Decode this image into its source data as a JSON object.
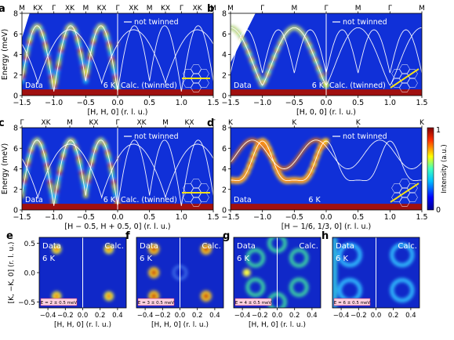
{
  "chart_data": [
    {
      "panel": "a",
      "type": "heatmap",
      "xlabel": "[H, H, 0] (r. l. u.)",
      "ylabel": "Energy (meV)",
      "xlim": [
        -1.5,
        1.5
      ],
      "ylim": [
        0,
        8
      ],
      "xticks": [
        "−1.5",
        "−1.0",
        "−0.5",
        "0.0",
        "0.5",
        "1.0",
        "1.5"
      ],
      "yticks": [
        "0",
        "2",
        "4",
        "6",
        "8"
      ],
      "top_labels": [
        "M",
        "KX",
        "Γ",
        "XK",
        "M",
        "KX",
        "Γ",
        "XK",
        "M",
        "KX",
        "Γ",
        "XK",
        "M"
      ],
      "legend": "not twinned",
      "left_text": "Data",
      "temp": "6 K",
      "right_text": "Calc. (twinned)",
      "pattern": "hh"
    },
    {
      "panel": "b",
      "type": "heatmap",
      "xlabel": "[H, 0, 0] (r. l. u.)",
      "ylabel": "",
      "xlim": [
        -1.5,
        1.5
      ],
      "ylim": [
        0,
        8
      ],
      "xticks": [
        "−1.5",
        "−1.0",
        "−0.5",
        "0.0",
        "0.5",
        "1.0",
        "1.5"
      ],
      "yticks": [
        "0",
        "2",
        "4",
        "6",
        "8"
      ],
      "top_labels": [
        "M",
        "Γ",
        "M",
        "Γ",
        "M",
        "Γ",
        "M"
      ],
      "legend": "not twinned",
      "left_text": "Data",
      "temp": "6 K",
      "right_text": "Calc. (twinned)",
      "pattern": "h00"
    },
    {
      "panel": "c",
      "type": "heatmap",
      "xlabel": "[H − 0.5, H + 0.5, 0] (r. l. u.)",
      "ylabel": "Energy (meV)",
      "xlim": [
        -1.5,
        1.5
      ],
      "ylim": [
        0,
        8
      ],
      "xticks": [
        "−1.5",
        "−1.0",
        "−0.5",
        "0.0",
        "0.5",
        "1.0",
        "1.5"
      ],
      "yticks": [
        "0",
        "2",
        "4",
        "6",
        "8"
      ],
      "top_labels": [
        "Γ",
        "XK",
        "M",
        "KX",
        "Γ",
        "XK",
        "M",
        "KX",
        "Γ"
      ],
      "legend": "not twinned",
      "left_text": "Data",
      "temp": "6 K",
      "right_text": "Calc. (twinned)",
      "pattern": "hh"
    },
    {
      "panel": "d",
      "type": "heatmap",
      "xlabel": "[H − 1/6, 1/3, 0] (r. l. u.)",
      "ylabel": "",
      "xlim": [
        -1.5,
        1.5
      ],
      "ylim": [
        0,
        8
      ],
      "xticks": [
        "−1.5",
        "−1.0",
        "−0.5",
        "0.0",
        "0.5",
        "1.0",
        "1.5"
      ],
      "yticks": [
        "0",
        "2",
        "4",
        "6",
        "8"
      ],
      "top_labels": [
        "K",
        "K",
        "K",
        "K"
      ],
      "legend": "not twinned",
      "left_text": "Data",
      "temp": "6 K",
      "right_text": "",
      "pattern": "k",
      "colorbar": {
        "label": "Intensity (a.u.)",
        "min": "0",
        "max": "1"
      }
    },
    {
      "panel": "e",
      "type": "heatmap",
      "xlabel": "[H, H, 0] (r. l. u.)",
      "ylabel": "[K, −K, 0] (r. l. u.)",
      "xticks": [
        "−0.4",
        "−0.2",
        "0.0",
        "0.2",
        "0.4"
      ],
      "yticks": [
        "−0.5",
        "0.0",
        "0.5"
      ],
      "left_text": "Data",
      "temp": "6 K",
      "right_text": "Calc.",
      "energy": "E = 2 ± 0.5 meV",
      "pattern": 2
    },
    {
      "panel": "f",
      "type": "heatmap",
      "xlabel": "[H, H, 0] (r. l. u.)",
      "ylabel": "",
      "xticks": [
        "−0.4",
        "−0.2",
        "0.0",
        "0.2",
        "0.4"
      ],
      "left_text": "Data",
      "temp": "6 K",
      "right_text": "Calc.",
      "energy": "E = 3 ± 0.5 meV",
      "pattern": 3
    },
    {
      "panel": "g",
      "type": "heatmap",
      "xlabel": "[H, H, 0] (r. l. u.)",
      "ylabel": "",
      "xticks": [
        "−0.4",
        "−0.2",
        "0.0",
        "0.2",
        "0.4"
      ],
      "left_text": "Data",
      "temp": "6 K",
      "right_text": "Calc.",
      "energy": "E = 4 ± 0.5 meV",
      "pattern": 4
    },
    {
      "panel": "h",
      "type": "heatmap",
      "xlabel": "",
      "ylabel": "",
      "xticks": [
        "−0.4",
        "−0.2",
        "0.0",
        "0.2",
        "0.4"
      ],
      "left_text": "Data",
      "temp": "6 K",
      "right_text": "Calc.",
      "energy": "E = 6 ± 0.5 meV",
      "pattern": 6
    }
  ]
}
